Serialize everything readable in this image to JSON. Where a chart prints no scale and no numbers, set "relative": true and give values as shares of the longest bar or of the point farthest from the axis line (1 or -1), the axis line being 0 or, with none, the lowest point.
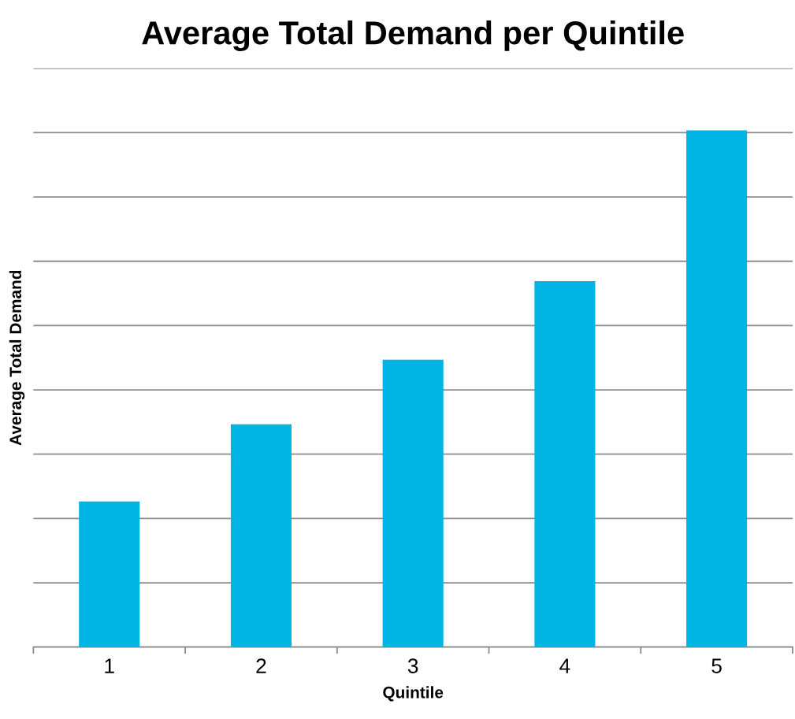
{
  "chart_data": {
    "type": "bar",
    "title": "Average Total Demand per Quintile",
    "xlabel": "Quintile",
    "ylabel": "Average Total Demand",
    "categories": [
      "1",
      "2",
      "3",
      "4",
      "5"
    ],
    "values": [
      0.282,
      0.431,
      0.556,
      0.708,
      1
    ],
    "color": "#00b4e4",
    "relative": true,
    "grid": "y",
    "legend": false
  }
}
